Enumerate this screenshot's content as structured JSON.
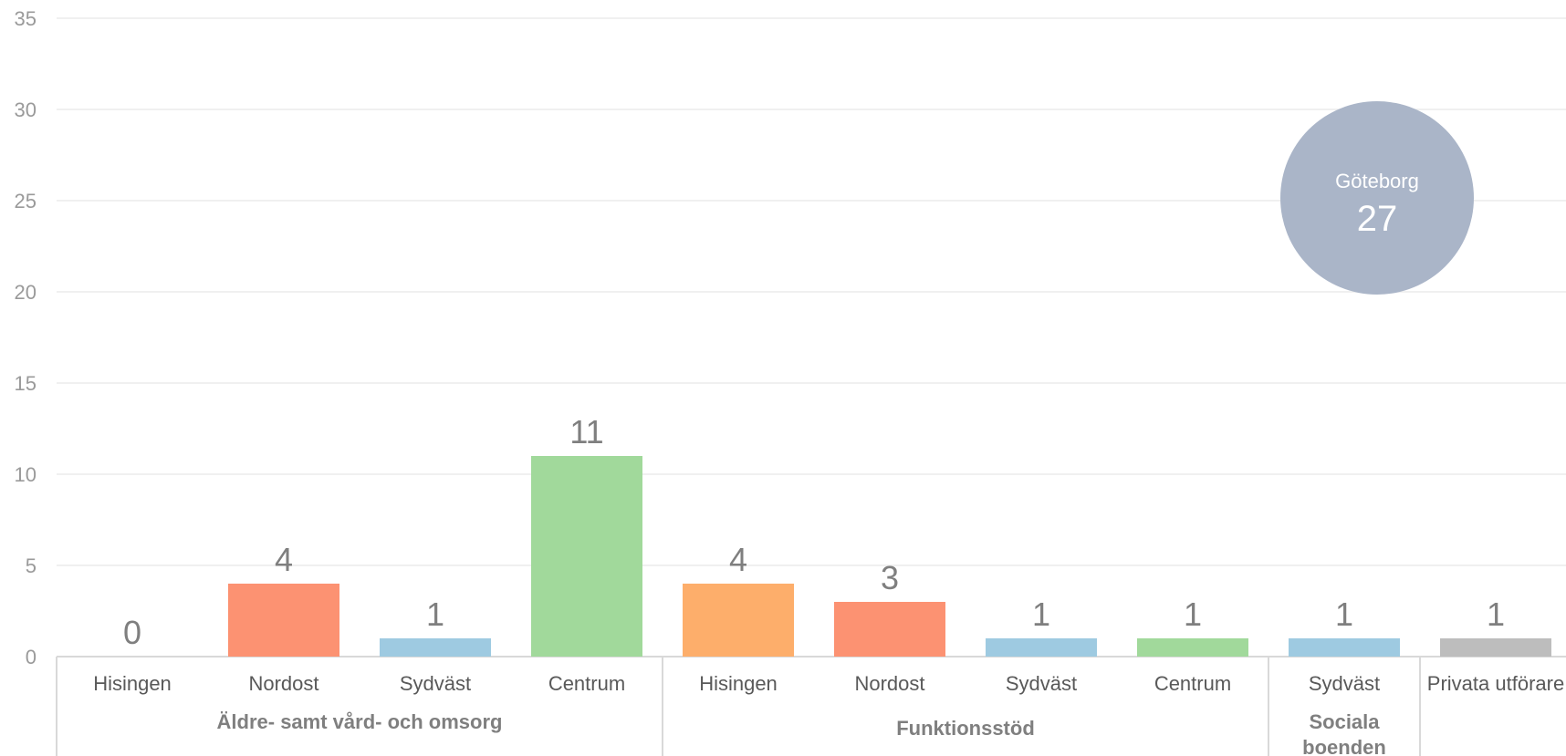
{
  "chart_data": {
    "type": "bar",
    "ylim": [
      0,
      35
    ],
    "yticks": [
      0,
      5,
      10,
      15,
      20,
      25,
      30,
      35
    ],
    "grid": true,
    "categories": [
      "Hisingen",
      "Nordost",
      "Sydväst",
      "Centrum",
      "Hisingen",
      "Nordost",
      "Sydväst",
      "Centrum",
      "Sydväst",
      "Privata utförare"
    ],
    "values": [
      0,
      4,
      1,
      11,
      4,
      3,
      1,
      1,
      1,
      1
    ],
    "colors": [
      "#a1d99b",
      "#fc9272",
      "#9ecae1",
      "#a1d99b",
      "#fdae6b",
      "#fc9272",
      "#9ecae1",
      "#a1d99b",
      "#9ecae1",
      "#bdbdbd"
    ],
    "groups": [
      {
        "label": "Äldre- samt vård- och omsorg",
        "start": 0,
        "end": 3
      },
      {
        "label": "Funktionsstöd",
        "start": 4,
        "end": 7
      },
      {
        "label": "Sociala boenden",
        "start": 8,
        "end": 8
      },
      {
        "label": "",
        "start": 9,
        "end": 9
      }
    ],
    "badge": {
      "title": "Göteborg",
      "value": "27",
      "color": "#aab5c8"
    },
    "title": "",
    "xlabel": "",
    "ylabel": ""
  }
}
